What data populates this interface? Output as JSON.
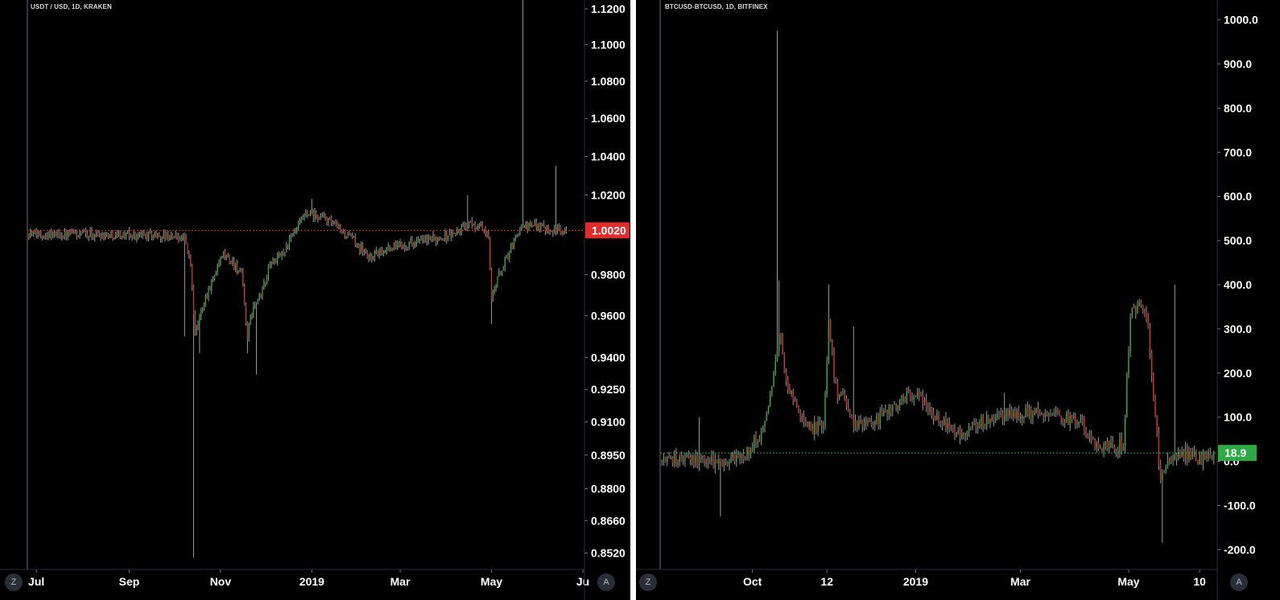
{
  "colors": {
    "background": "#000000",
    "up": "#3cb043",
    "down": "#e03030",
    "wick": "#9a9a9a",
    "axis_text": "#ffffff",
    "left_marker": "#e02c2c",
    "right_marker": "#2eaa44"
  },
  "chart_data": [
    {
      "type": "candlestick",
      "title": "USDT / USD, 1D, KRAKEN",
      "y_scale": "log",
      "ylim": [
        0.845,
        1.125
      ],
      "x_range": [
        "2018-06-25",
        "2019-07-01"
      ],
      "x_tick_labels": [
        "Jul",
        "Sep",
        "Nov",
        "2019",
        "Mar",
        "May",
        "Ju"
      ],
      "x_tick_dates": [
        "2018-07-01",
        "2018-09-01",
        "2018-11-01",
        "2019-01-01",
        "2019-03-01",
        "2019-05-01",
        "2019-07-01"
      ],
      "y_tick_labels": [
        "1.1200",
        "1.1000",
        "1.0800",
        "1.0600",
        "1.0400",
        "1.0200",
        "0.9800",
        "0.9600",
        "0.9400",
        "0.9250",
        "0.9100",
        "0.8950",
        "0.8800",
        "0.8660",
        "0.8520"
      ],
      "y_ticks": [
        1.12,
        1.1,
        1.08,
        1.06,
        1.04,
        1.02,
        0.98,
        0.96,
        0.94,
        0.925,
        0.91,
        0.895,
        0.88,
        0.866,
        0.852
      ],
      "last_price": 1.002,
      "last_price_label": "1.0020",
      "close_path": [
        [
          "2018-06-26",
          1.0005
        ],
        [
          "2018-07-20",
          1.0
        ],
        [
          "2018-08-15",
          0.9998
        ],
        [
          "2018-09-15",
          0.9995
        ],
        [
          "2018-10-01",
          0.999
        ],
        [
          "2018-10-08",
          0.9985
        ],
        [
          "2018-10-12",
          0.985
        ],
        [
          "2018-10-15",
          0.95
        ],
        [
          "2018-10-20",
          0.965
        ],
        [
          "2018-10-28",
          0.98
        ],
        [
          "2018-11-03",
          0.99
        ],
        [
          "2018-11-10",
          0.985
        ],
        [
          "2018-11-15",
          0.98
        ],
        [
          "2018-11-19",
          0.95
        ],
        [
          "2018-11-22",
          0.962
        ],
        [
          "2018-11-28",
          0.97
        ],
        [
          "2018-12-04",
          0.985
        ],
        [
          "2018-12-12",
          0.99
        ],
        [
          "2018-12-20",
          1.0
        ],
        [
          "2018-12-28",
          1.01
        ],
        [
          "2019-01-10",
          1.008
        ],
        [
          "2019-01-20",
          1.002
        ],
        [
          "2019-02-01",
          0.995
        ],
        [
          "2019-02-08",
          0.988
        ],
        [
          "2019-02-20",
          0.993
        ],
        [
          "2019-03-10",
          0.996
        ],
        [
          "2019-03-25",
          0.998
        ],
        [
          "2019-04-05",
          1.0
        ],
        [
          "2019-04-15",
          1.005
        ],
        [
          "2019-04-25",
          1.004
        ],
        [
          "2019-04-29",
          0.997
        ],
        [
          "2019-05-01",
          0.97
        ],
        [
          "2019-05-06",
          0.98
        ],
        [
          "2019-05-12",
          0.99
        ],
        [
          "2019-05-20",
          1.003
        ],
        [
          "2019-06-01",
          1.005
        ],
        [
          "2019-06-12",
          1.002
        ],
        [
          "2019-06-20",
          1.002
        ]
      ],
      "wick_spikes": [
        [
          "2018-10-14",
          0.85
        ],
        [
          "2018-11-19",
          0.942
        ],
        [
          "2018-11-25",
          0.932
        ],
        [
          "2018-10-18",
          0.942
        ],
        [
          "2018-10-08",
          0.95
        ],
        [
          "2019-05-01",
          0.956
        ],
        [
          "2019-05-22",
          1.125
        ],
        [
          "2019-06-13",
          1.035
        ],
        [
          "2019-04-15",
          1.02
        ],
        [
          "2019-01-01",
          1.018
        ]
      ]
    },
    {
      "type": "candlestick",
      "title": "BTCUSD-BTCUSD, 1D, BITFINEX",
      "y_scale": "linear",
      "ylim": [
        -245,
        1045
      ],
      "x_range": [
        "2018-08-10",
        "2019-06-19"
      ],
      "x_tick_labels": [
        "Oct",
        "12",
        "2019",
        "Mar",
        "May",
        "10"
      ],
      "x_tick_dates": [
        "2018-10-01",
        "2018-11-12",
        "2019-01-01",
        "2019-03-01",
        "2019-05-01",
        "2019-06-10"
      ],
      "y_tick_labels": [
        "1000.0",
        "900.0",
        "800.0",
        "700.0",
        "600.0",
        "500.0",
        "400.0",
        "300.0",
        "200.0",
        "100.0",
        "0.0",
        "-100.0",
        "-200.0"
      ],
      "y_ticks": [
        1000,
        900,
        800,
        700,
        600,
        500,
        400,
        300,
        200,
        100,
        0,
        -100,
        -200
      ],
      "last_price": 18.9,
      "last_price_label": "18.9",
      "close_path": [
        [
          "2018-08-11",
          0
        ],
        [
          "2018-08-25",
          5
        ],
        [
          "2018-09-10",
          0
        ],
        [
          "2018-09-25",
          10
        ],
        [
          "2018-10-05",
          60
        ],
        [
          "2018-10-12",
          160
        ],
        [
          "2018-10-16",
          300
        ],
        [
          "2018-10-20",
          180
        ],
        [
          "2018-10-27",
          110
        ],
        [
          "2018-11-03",
          75
        ],
        [
          "2018-11-10",
          80
        ],
        [
          "2018-11-13",
          310
        ],
        [
          "2018-11-18",
          130
        ],
        [
          "2018-11-22",
          150
        ],
        [
          "2018-11-26",
          90
        ],
        [
          "2018-12-05",
          80
        ],
        [
          "2018-12-20",
          120
        ],
        [
          "2018-12-30",
          155
        ],
        [
          "2019-01-10",
          110
        ],
        [
          "2019-01-25",
          60
        ],
        [
          "2019-02-05",
          85
        ],
        [
          "2019-02-20",
          100
        ],
        [
          "2019-03-05",
          110
        ],
        [
          "2019-03-25",
          100
        ],
        [
          "2019-04-05",
          80
        ],
        [
          "2019-04-12",
          30
        ],
        [
          "2019-04-20",
          30
        ],
        [
          "2019-04-28",
          40
        ],
        [
          "2019-05-02",
          330
        ],
        [
          "2019-05-08",
          350
        ],
        [
          "2019-05-12",
          300
        ],
        [
          "2019-05-16",
          100
        ],
        [
          "2019-05-19",
          -50
        ],
        [
          "2019-05-22",
          0
        ],
        [
          "2019-06-01",
          20
        ],
        [
          "2019-06-10",
          5
        ],
        [
          "2019-06-18",
          20
        ]
      ],
      "wick_spikes": [
        [
          "2018-10-15",
          975
        ],
        [
          "2018-10-16",
          410
        ],
        [
          "2018-11-13",
          400
        ],
        [
          "2018-11-27",
          305
        ],
        [
          "2018-09-13",
          -125
        ],
        [
          "2019-05-20",
          -185
        ],
        [
          "2019-05-27",
          400
        ],
        [
          "2018-12-10",
          100
        ],
        [
          "2019-02-20",
          155
        ],
        [
          "2018-09-01",
          100
        ]
      ]
    }
  ],
  "buttons": {
    "z": "Z",
    "a": "A"
  }
}
